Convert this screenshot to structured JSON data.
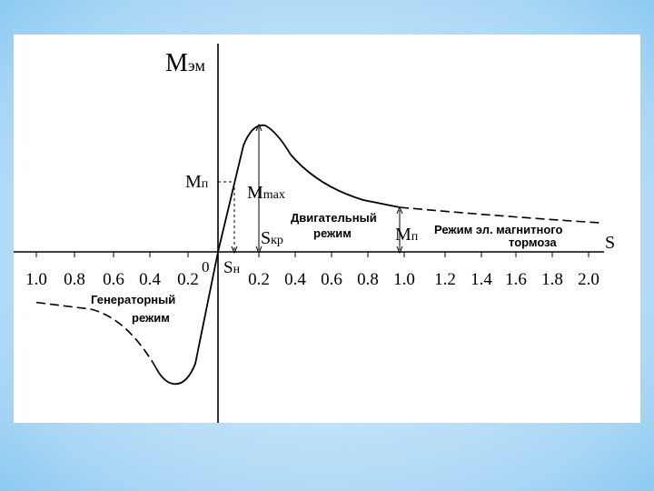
{
  "diagram": {
    "axis_labels": {
      "y": {
        "main": "M",
        "sub": "эм"
      },
      "x": "S",
      "origin": "0"
    },
    "left_ticks": [
      "1.0",
      "0.8",
      "0.6",
      "0.4",
      "0.2"
    ],
    "right_ticks": [
      "0.2",
      "0.4",
      "0.6",
      "0.8",
      "1.0",
      "1.2",
      "1.4",
      "1.6",
      "1.8",
      "2.0"
    ],
    "labels": {
      "m_start": {
        "main": "M",
        "sub": "п"
      },
      "m_max": {
        "main": "M",
        "sub": "max"
      },
      "s_kr": {
        "main": "S",
        "sub": "кр"
      },
      "s_n": {
        "main": "S",
        "sub": "н"
      },
      "m_p": {
        "main": "M",
        "sub": "п"
      }
    },
    "regions": {
      "motor": [
        "Двигательный",
        "режим"
      ],
      "brake": [
        "Режим эл. магнитного",
        "тормоза"
      ],
      "generator": [
        "Генераторный",
        "режим"
      ]
    }
  }
}
